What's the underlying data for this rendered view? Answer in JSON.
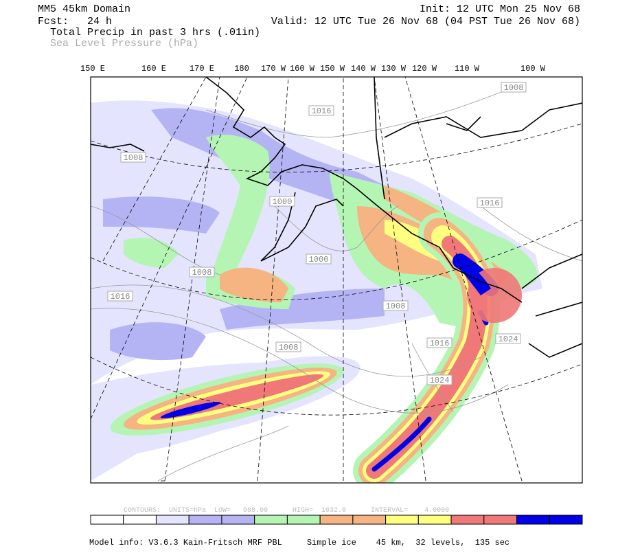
{
  "header": {
    "domain": "MM5 45km Domain",
    "init": "Init: 12 UTC Mon 25 Nov 68",
    "forecast": "Fcst:   24 h",
    "valid": "Valid: 12 UTC Tue 26 Nov 68 (04 PST Tue 26 Nov 68)",
    "field1": "Total Precip in past 3 hrs (.01in)",
    "field2": "Sea Level Pressure (hPa)"
  },
  "longitude_labels": [
    "150 E",
    "160 E",
    "170 E",
    "180",
    "170 W",
    "160 W",
    "150 W",
    "140 W",
    "130 W",
    "120 W",
    "110 W",
    "100 W"
  ],
  "contour_labels": [
    "1008",
    "1016",
    "1008",
    "1000",
    "1000",
    "1008",
    "1016",
    "1008",
    "1016",
    "1024",
    "1024",
    "1008",
    "1016"
  ],
  "contour_info": "CONTOURS:  UNITS=hPa  LOW=   988.00      HIGH=  1032.0      INTERVAL=    4.0000",
  "colorbar": {
    "colors": [
      "#ffffff",
      "#ffffff",
      "#e4e4fe",
      "#b4b4f5",
      "#b4b4f5",
      "#b4f5b4",
      "#b4f5b4",
      "#f5b482",
      "#f5b482",
      "#ffff80",
      "#ffff80",
      "#f07878",
      "#f07878",
      "#0000e6",
      "#0000e6"
    ]
  },
  "footer": "Model info: V3.6.3 Kain-Fritsch MRF PBL     Simple ice    45 km,  32 levels,  135 sec"
}
